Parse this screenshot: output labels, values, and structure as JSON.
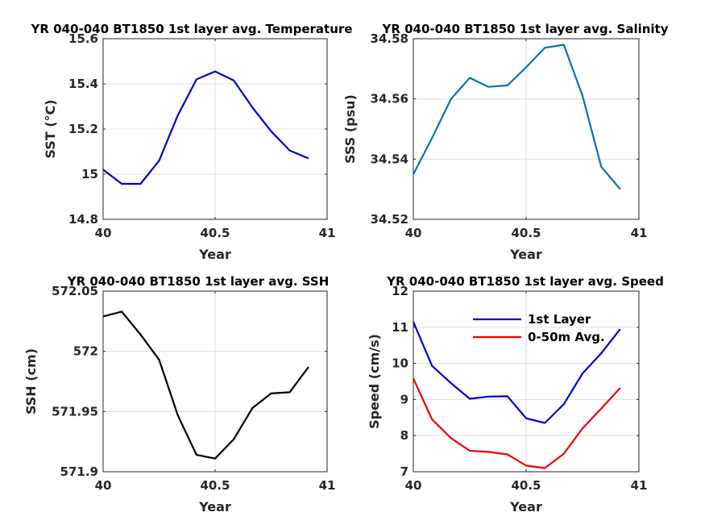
{
  "chart_data": [
    {
      "type": "line",
      "title": "YR 040-040 BT1850 1st layer avg. Temperature",
      "xlabel": "Year",
      "ylabel": "SST (°C)",
      "xlim": [
        40,
        41
      ],
      "ylim": [
        14.8,
        15.6
      ],
      "xticks": [
        "40",
        "40.5",
        "41"
      ],
      "yticks": [
        "14.8",
        "15",
        "15.2",
        "15.4",
        "15.6"
      ],
      "grid": true,
      "series": [
        {
          "color": "#0000cc",
          "x": [
            40.0,
            40.083,
            40.167,
            40.25,
            40.333,
            40.417,
            40.5,
            40.583,
            40.667,
            40.75,
            40.833,
            40.917
          ],
          "values": [
            15.02,
            14.957,
            14.957,
            15.06,
            15.26,
            15.42,
            15.455,
            15.415,
            15.295,
            15.19,
            15.105,
            15.07
          ]
        }
      ]
    },
    {
      "type": "line",
      "title": "YR 040-040 BT1850 1st layer avg. Salinity",
      "xlabel": "Year",
      "ylabel": "SSS (psu)",
      "xlim": [
        40,
        41
      ],
      "ylim": [
        34.52,
        34.58
      ],
      "xticks": [
        "40",
        "40.5",
        "41"
      ],
      "yticks": [
        "34.52",
        "34.54",
        "34.56",
        "34.58"
      ],
      "grid": true,
      "series": [
        {
          "color": "#0072bd",
          "x": [
            40.0,
            40.083,
            40.167,
            40.25,
            40.333,
            40.417,
            40.5,
            40.583,
            40.667,
            40.75,
            40.833,
            40.917
          ],
          "values": [
            34.535,
            34.547,
            34.56,
            34.567,
            34.564,
            34.5645,
            34.5705,
            34.577,
            34.578,
            34.561,
            34.5375,
            34.53
          ]
        }
      ]
    },
    {
      "type": "line",
      "title": "YR 040-040 BT1850 1st layer avg. SSH",
      "xlabel": "Year",
      "ylabel": "SSH (cm)",
      "xlim": [
        40,
        41
      ],
      "ylim": [
        571.9,
        572.05
      ],
      "xticks": [
        "40",
        "40.5",
        "41"
      ],
      "yticks": [
        "571.9",
        "571.95",
        "572",
        "572.05"
      ],
      "grid": true,
      "series": [
        {
          "color": "#000000",
          "x": [
            40.0,
            40.083,
            40.167,
            40.25,
            40.333,
            40.417,
            40.5,
            40.583,
            40.667,
            40.75,
            40.833,
            40.917
          ],
          "values": [
            572.029,
            572.033,
            572.014,
            571.993,
            571.947,
            571.914,
            571.911,
            571.927,
            571.953,
            571.965,
            571.966,
            571.987
          ]
        }
      ]
    },
    {
      "type": "line",
      "title": "YR 040-040 BT1850 1st layer avg. Speed",
      "xlabel": "Year",
      "ylabel": "Speed (cm/s)",
      "xlim": [
        40,
        41
      ],
      "ylim": [
        7,
        12
      ],
      "xticks": [
        "40",
        "40.5",
        "41"
      ],
      "yticks": [
        "7",
        "8",
        "9",
        "10",
        "11",
        "12"
      ],
      "grid": true,
      "legend": "top-right",
      "series": [
        {
          "name": "1st Layer",
          "color": "#0000cc",
          "x": [
            40.0,
            40.083,
            40.167,
            40.25,
            40.333,
            40.417,
            40.5,
            40.583,
            40.667,
            40.75,
            40.833,
            40.917
          ],
          "values": [
            11.15,
            9.93,
            9.45,
            9.02,
            9.08,
            9.09,
            8.48,
            8.35,
            8.87,
            9.72,
            10.28,
            10.95
          ]
        },
        {
          "name": "0-50m Avg.",
          "color": "#ee0000",
          "x": [
            40.0,
            40.083,
            40.167,
            40.25,
            40.333,
            40.417,
            40.5,
            40.583,
            40.667,
            40.75,
            40.833,
            40.917
          ],
          "values": [
            9.58,
            8.45,
            7.93,
            7.58,
            7.55,
            7.48,
            7.17,
            7.1,
            7.5,
            8.2,
            8.75,
            9.32
          ]
        }
      ]
    }
  ]
}
